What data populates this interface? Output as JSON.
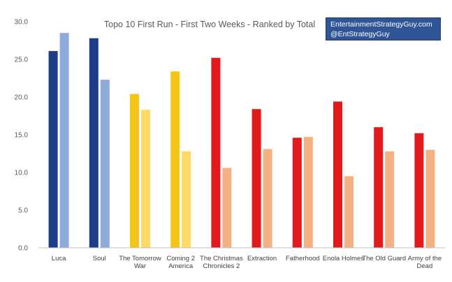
{
  "chart_data": {
    "type": "bar",
    "title": "Topo 10 First Run - First Two Weeks - Ranked by Total",
    "ylim": [
      0,
      30
    ],
    "yticks": [
      "0.0",
      "5.0",
      "10.0",
      "15.0",
      "20.0",
      "25.0",
      "30.0"
    ],
    "grid": false,
    "legend": "none",
    "categories": [
      [
        "Luca"
      ],
      [
        "Soul"
      ],
      [
        "The Tomorrow",
        "War"
      ],
      [
        "Coming 2",
        "America"
      ],
      [
        "The Christmas",
        "Chronicles 2"
      ],
      [
        "Extraction"
      ],
      [
        "Fatherhood"
      ],
      [
        "Enola Holmes"
      ],
      [
        "The Old Guard"
      ],
      [
        "Army of the",
        "Dead"
      ]
    ],
    "series": [
      {
        "values": [
          26.1,
          27.8,
          20.4,
          23.4,
          25.2,
          18.4,
          14.6,
          19.4,
          16.0,
          15.2
        ]
      },
      {
        "values": [
          28.5,
          22.3,
          18.3,
          12.8,
          10.6,
          13.1,
          14.7,
          9.5,
          12.8,
          13.0
        ]
      }
    ],
    "bar_colors": [
      [
        "#1f3c88",
        "#8eaadb"
      ],
      [
        "#1f3c88",
        "#8eaadb"
      ],
      [
        "#f5c518",
        "#ffd966"
      ],
      [
        "#f5c518",
        "#ffd966"
      ],
      [
        "#e31a1c",
        "#f4b183"
      ],
      [
        "#e31a1c",
        "#f4b183"
      ],
      [
        "#e31a1c",
        "#f4b183"
      ],
      [
        "#e31a1c",
        "#f4b183"
      ],
      [
        "#e31a1c",
        "#f4b183"
      ],
      [
        "#e31a1c",
        "#f4b183"
      ]
    ]
  },
  "badge": {
    "line1": "EntertainmentStrategyGuy.com",
    "line2": "@EntStrategyGuy"
  }
}
